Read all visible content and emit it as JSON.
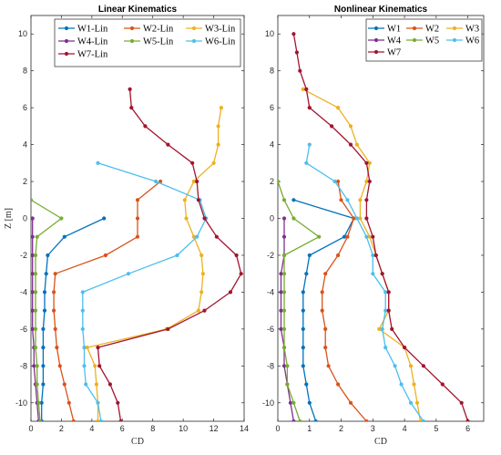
{
  "chart_data": [
    {
      "type": "line",
      "title": "Linear Kinematics",
      "xlabel": "CD",
      "ylabel": "Z [m]",
      "xlim": [
        0,
        14
      ],
      "ylim": [
        -11,
        11
      ],
      "xticks": [
        0,
        2,
        4,
        6,
        8,
        10,
        12,
        14
      ],
      "yticks": [
        -10,
        -8,
        -6,
        -4,
        -2,
        0,
        2,
        4,
        6,
        8,
        10
      ],
      "grid": false,
      "legend": "top-right",
      "legend_columns": 3,
      "series": [
        {
          "name": "W1-Lin",
          "color": "#0072BD",
          "z": [
            0,
            -1,
            -2,
            -3,
            -4,
            -5,
            -6,
            -7,
            -8,
            -9,
            -10,
            -11
          ],
          "x": [
            4.8,
            2.2,
            1.1,
            1.0,
            0.9,
            0.9,
            0.8,
            0.8,
            0.8,
            0.8,
            0.7,
            0.7
          ]
        },
        {
          "name": "W2-Lin",
          "color": "#D95319",
          "z": [
            2,
            1,
            0,
            -1,
            -2,
            -3,
            -4,
            -5,
            -6,
            -7,
            -8,
            -9,
            -10,
            -11
          ],
          "x": [
            8.5,
            7.0,
            7.0,
            7.0,
            4.9,
            1.6,
            1.5,
            1.5,
            1.6,
            1.7,
            1.9,
            2.2,
            2.5,
            2.8
          ]
        },
        {
          "name": "W3-Lin",
          "color": "#EDB120",
          "z": [
            6,
            5,
            4,
            3,
            2,
            1,
            0,
            -1,
            -2,
            -3,
            -4,
            -5,
            -6,
            -7,
            -8,
            -9,
            -10,
            -11
          ],
          "x": [
            12.5,
            12.3,
            12.3,
            12.0,
            10.7,
            10.1,
            10.2,
            10.7,
            11.2,
            11.3,
            11.2,
            11.0,
            8.9,
            3.7,
            4.2,
            4.3,
            4.4,
            4.4
          ]
        },
        {
          "name": "W4-Lin",
          "color": "#7E2F8E",
          "z": [
            0,
            -1,
            -2,
            -3,
            -4,
            -5,
            -6,
            -7,
            -8,
            -9,
            -10,
            -11
          ],
          "x": [
            0.1,
            0.1,
            0.1,
            0.1,
            0.1,
            0.1,
            0.1,
            0.2,
            0.2,
            0.3,
            0.4,
            0.5
          ]
        },
        {
          "name": "W5-Lin",
          "color": "#77AC30",
          "z": [
            1,
            0,
            -1,
            -2,
            -3,
            -4,
            -5,
            -6,
            -7,
            -8,
            -9,
            -10,
            -11
          ],
          "x": [
            0.0,
            2.0,
            0.4,
            0.3,
            0.3,
            0.3,
            0.3,
            0.3,
            0.3,
            0.4,
            0.4,
            0.5,
            0.6
          ]
        },
        {
          "name": "W6-Lin",
          "color": "#4DBEEE",
          "z": [
            3,
            2,
            1,
            0,
            -1,
            -2,
            -3,
            -4,
            -5,
            -6,
            -7,
            -8,
            -9,
            -10,
            -11
          ],
          "x": [
            4.4,
            8.2,
            11.1,
            11.5,
            10.9,
            9.6,
            6.4,
            3.4,
            3.4,
            3.4,
            3.5,
            3.5,
            3.6,
            4.4,
            4.6
          ]
        },
        {
          "name": "W7-Lin",
          "color": "#A2142F",
          "z": [
            7,
            6,
            5,
            4,
            3,
            2,
            1,
            0,
            -1,
            -2,
            -3,
            -4,
            -5,
            -6,
            -7,
            -8,
            -9,
            -10,
            -11
          ],
          "x": [
            6.5,
            6.6,
            7.5,
            9.0,
            10.6,
            10.9,
            11.0,
            11.4,
            12.2,
            13.5,
            13.8,
            13.1,
            11.4,
            9.0,
            4.4,
            4.5,
            5.2,
            5.7,
            5.9
          ]
        }
      ]
    },
    {
      "type": "line",
      "title": "Nonlinear Kinematics",
      "xlabel": "CD",
      "ylabel": "",
      "xlim": [
        0,
        6.5
      ],
      "ylim": [
        -11,
        11
      ],
      "xticks": [
        0,
        1,
        2,
        3,
        4,
        5,
        6
      ],
      "yticks": [
        -10,
        -8,
        -6,
        -4,
        -2,
        0,
        2,
        4,
        6,
        8,
        10
      ],
      "grid": false,
      "legend": "top-right",
      "legend_columns": 3,
      "series": [
        {
          "name": "W1",
          "color": "#0072BD",
          "z": [
            1,
            0,
            -1,
            -2,
            -3,
            -4,
            -5,
            -6,
            -7,
            -8,
            -9,
            -10,
            -11
          ],
          "x": [
            0.5,
            2.4,
            2.1,
            1.0,
            0.9,
            0.8,
            0.8,
            0.8,
            0.8,
            0.8,
            0.9,
            1.0,
            1.2
          ]
        },
        {
          "name": "W2",
          "color": "#D95319",
          "z": [
            2,
            1,
            0,
            -1,
            -2,
            -3,
            -4,
            -5,
            -6,
            -7,
            -8,
            -9,
            -10,
            -11
          ],
          "x": [
            1.9,
            2.0,
            2.4,
            2.2,
            1.9,
            1.5,
            1.4,
            1.4,
            1.5,
            1.5,
            1.6,
            1.9,
            2.3,
            2.8
          ]
        },
        {
          "name": "W3",
          "color": "#EDB120",
          "z": [
            7,
            6,
            5,
            4,
            3,
            2,
            1,
            0,
            -1,
            -2,
            -3,
            -4,
            -5,
            -6,
            -7,
            -8,
            -9,
            -10,
            -11
          ],
          "x": [
            0.8,
            1.9,
            2.3,
            2.5,
            2.9,
            2.8,
            2.6,
            2.6,
            2.9,
            3.1,
            3.3,
            3.5,
            3.5,
            3.2,
            4.0,
            4.2,
            4.3,
            4.4,
            4.5
          ]
        },
        {
          "name": "W4",
          "color": "#7E2F8E",
          "z": [
            0,
            -1,
            -2,
            -3,
            -4,
            -5,
            -6,
            -7,
            -8,
            -9,
            -10,
            -11
          ],
          "x": [
            0.2,
            0.2,
            0.2,
            0.1,
            0.1,
            0.1,
            0.1,
            0.2,
            0.2,
            0.3,
            0.4,
            0.5
          ]
        },
        {
          "name": "W5",
          "color": "#77AC30",
          "z": [
            2,
            1,
            0,
            -1,
            -2,
            -3,
            -4,
            -5,
            -6,
            -7,
            -8,
            -9,
            -10,
            -11
          ],
          "x": [
            0.0,
            0.2,
            0.5,
            1.3,
            0.2,
            0.2,
            0.2,
            0.2,
            0.2,
            0.2,
            0.3,
            0.3,
            0.5,
            0.7
          ]
        },
        {
          "name": "W6",
          "color": "#4DBEEE",
          "z": [
            4,
            3,
            2,
            1,
            0,
            -1,
            -2,
            -3,
            -4,
            -5,
            -6,
            -7,
            -8,
            -9,
            -10,
            -11
          ],
          "x": [
            1.0,
            0.9,
            1.8,
            2.2,
            2.5,
            2.8,
            3.0,
            3.0,
            3.4,
            3.4,
            3.3,
            3.4,
            3.7,
            3.9,
            4.2,
            4.6
          ]
        },
        {
          "name": "W7",
          "color": "#A2142F",
          "z": [
            10,
            9,
            8,
            7,
            6,
            5,
            4,
            3,
            2,
            1,
            0,
            -1,
            -2,
            -3,
            -4,
            -5,
            -6,
            -7,
            -8,
            -9,
            -10,
            -11
          ],
          "x": [
            0.5,
            0.6,
            0.7,
            0.9,
            1.0,
            1.7,
            2.3,
            2.8,
            2.9,
            2.8,
            2.8,
            3.0,
            3.1,
            3.3,
            3.5,
            3.5,
            3.6,
            4.0,
            4.6,
            5.2,
            5.8,
            6.0
          ]
        }
      ]
    }
  ]
}
